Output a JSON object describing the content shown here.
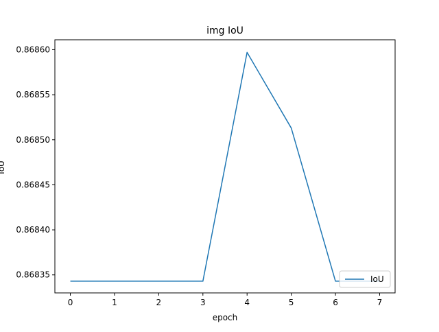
{
  "chart_data": {
    "type": "line",
    "title": "img IoU",
    "xlabel": "epoch",
    "ylabel": "IoU",
    "x": [
      0,
      1,
      2,
      3,
      4,
      5,
      6,
      7
    ],
    "series": [
      {
        "name": "IoU",
        "color": "#1f77b4",
        "values": [
          0.868343,
          0.868343,
          0.868343,
          0.868343,
          0.868597,
          0.868513,
          0.868343,
          0.868343
        ]
      }
    ],
    "xlim": [
      -0.35,
      7.35
    ],
    "ylim": [
      0.86833,
      0.868611
    ],
    "xticks": [
      0,
      1,
      2,
      3,
      4,
      5,
      6,
      7
    ],
    "xtick_labels": [
      "0",
      "1",
      "2",
      "3",
      "4",
      "5",
      "6",
      "7"
    ],
    "yticks": [
      0.86835,
      0.8684,
      0.86845,
      0.8685,
      0.86855,
      0.8686
    ],
    "ytick_labels": [
      "0.86835",
      "0.86840",
      "0.86845",
      "0.86850",
      "0.86855",
      "0.86860"
    ],
    "grid": false,
    "legend_position": "lower right"
  }
}
